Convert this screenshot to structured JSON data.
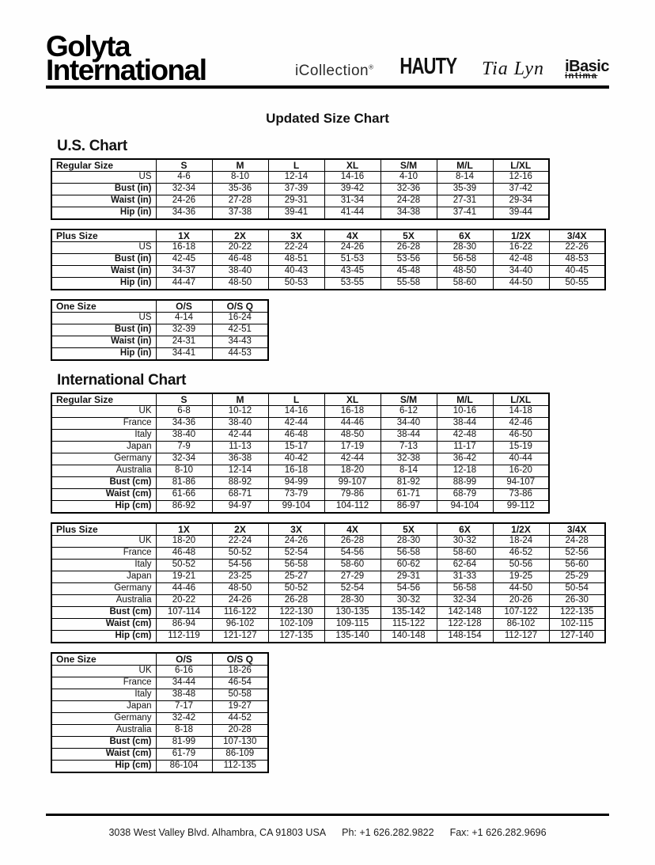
{
  "header": {
    "logo_line1": "Golyta",
    "logo_line2": "International",
    "brands": {
      "icollection": {
        "name": "iCollection",
        "mark": "®"
      },
      "hauty": {
        "name": "HAUTY"
      },
      "tialyn": {
        "name": "Tia Lyn"
      },
      "ibasic": {
        "name": "iBasic",
        "sub": "intima"
      }
    }
  },
  "title": "Updated Size Chart",
  "us": {
    "heading": "U.S. Chart"
  },
  "international": {
    "heading": "International Chart"
  },
  "tables": {
    "us_regular": {
      "corner": "Regular Size",
      "columns": [
        "S",
        "M",
        "L",
        "XL",
        "S/M",
        "M/L",
        "L/XL"
      ],
      "rows": [
        {
          "label": "US",
          "values": [
            "4-6",
            "8-10",
            "12-14",
            "14-16",
            "4-10",
            "8-14",
            "12-16"
          ]
        },
        {
          "label": "Bust (in)",
          "values": [
            "32-34",
            "35-36",
            "37-39",
            "39-42",
            "32-36",
            "35-39",
            "37-42"
          ]
        },
        {
          "label": "Waist (in)",
          "values": [
            "24-26",
            "27-28",
            "29-31",
            "31-34",
            "24-28",
            "27-31",
            "29-34"
          ]
        },
        {
          "label": "Hip (in)",
          "values": [
            "34-36",
            "37-38",
            "39-41",
            "41-44",
            "34-38",
            "37-41",
            "39-44"
          ]
        }
      ]
    },
    "us_plus": {
      "corner": "Plus Size",
      "columns": [
        "1X",
        "2X",
        "3X",
        "4X",
        "5X",
        "6X",
        "1/2X",
        "3/4X"
      ],
      "rows": [
        {
          "label": "US",
          "values": [
            "16-18",
            "20-22",
            "22-24",
            "24-26",
            "26-28",
            "28-30",
            "16-22",
            "22-26"
          ]
        },
        {
          "label": "Bust (in)",
          "values": [
            "42-45",
            "46-48",
            "48-51",
            "51-53",
            "53-56",
            "56-58",
            "42-48",
            "48-53"
          ]
        },
        {
          "label": "Waist (in)",
          "values": [
            "34-37",
            "38-40",
            "40-43",
            "43-45",
            "45-48",
            "48-50",
            "34-40",
            "40-45"
          ]
        },
        {
          "label": "Hip (in)",
          "values": [
            "44-47",
            "48-50",
            "50-53",
            "53-55",
            "55-58",
            "58-60",
            "44-50",
            "50-55"
          ]
        }
      ]
    },
    "us_onesize": {
      "corner": "One Size",
      "columns": [
        "O/S",
        "O/S Q"
      ],
      "rows": [
        {
          "label": "US",
          "values": [
            "4-14",
            "16-24"
          ]
        },
        {
          "label": "Bust (in)",
          "values": [
            "32-39",
            "42-51"
          ]
        },
        {
          "label": "Waist (in)",
          "values": [
            "24-31",
            "34-43"
          ]
        },
        {
          "label": "Hip (in)",
          "values": [
            "34-41",
            "44-53"
          ]
        }
      ]
    },
    "int_regular": {
      "corner": "Regular Size",
      "columns": [
        "S",
        "M",
        "L",
        "XL",
        "S/M",
        "M/L",
        "L/XL"
      ],
      "rows": [
        {
          "label": "UK",
          "values": [
            "6-8",
            "10-12",
            "14-16",
            "16-18",
            "6-12",
            "10-16",
            "14-18"
          ]
        },
        {
          "label": "France",
          "values": [
            "34-36",
            "38-40",
            "42-44",
            "44-46",
            "34-40",
            "38-44",
            "42-46"
          ]
        },
        {
          "label": "Italy",
          "values": [
            "38-40",
            "42-44",
            "46-48",
            "48-50",
            "38-44",
            "42-48",
            "46-50"
          ]
        },
        {
          "label": "Japan",
          "values": [
            "7-9",
            "11-13",
            "15-17",
            "17-19",
            "7-13",
            "11-17",
            "15-19"
          ]
        },
        {
          "label": "Germany",
          "values": [
            "32-34",
            "36-38",
            "40-42",
            "42-44",
            "32-38",
            "36-42",
            "40-44"
          ]
        },
        {
          "label": "Australia",
          "values": [
            "8-10",
            "12-14",
            "16-18",
            "18-20",
            "8-14",
            "12-18",
            "16-20"
          ]
        },
        {
          "label": "Bust (cm)",
          "values": [
            "81-86",
            "88-92",
            "94-99",
            "99-107",
            "81-92",
            "88-99",
            "94-107"
          ]
        },
        {
          "label": "Waist (cm)",
          "values": [
            "61-66",
            "68-71",
            "73-79",
            "79-86",
            "61-71",
            "68-79",
            "73-86"
          ]
        },
        {
          "label": "Hip (cm)",
          "values": [
            "86-92",
            "94-97",
            "99-104",
            "104-112",
            "86-97",
            "94-104",
            "99-112"
          ]
        }
      ]
    },
    "int_plus": {
      "corner": "Plus Size",
      "columns": [
        "1X",
        "2X",
        "3X",
        "4X",
        "5X",
        "6X",
        "1/2X",
        "3/4X"
      ],
      "rows": [
        {
          "label": "UK",
          "values": [
            "18-20",
            "22-24",
            "24-26",
            "26-28",
            "28-30",
            "30-32",
            "18-24",
            "24-28"
          ]
        },
        {
          "label": "France",
          "values": [
            "46-48",
            "50-52",
            "52-54",
            "54-56",
            "56-58",
            "58-60",
            "46-52",
            "52-56"
          ]
        },
        {
          "label": "Italy",
          "values": [
            "50-52",
            "54-56",
            "56-58",
            "58-60",
            "60-62",
            "62-64",
            "50-56",
            "56-60"
          ]
        },
        {
          "label": "Japan",
          "values": [
            "19-21",
            "23-25",
            "25-27",
            "27-29",
            "29-31",
            "31-33",
            "19-25",
            "25-29"
          ]
        },
        {
          "label": "Germany",
          "values": [
            "44-46",
            "48-50",
            "50-52",
            "52-54",
            "54-56",
            "56-58",
            "44-50",
            "50-54"
          ]
        },
        {
          "label": "Australia",
          "values": [
            "20-22",
            "24-26",
            "26-28",
            "28-30",
            "30-32",
            "32-34",
            "20-26",
            "26-30"
          ]
        },
        {
          "label": "Bust (cm)",
          "values": [
            "107-114",
            "116-122",
            "122-130",
            "130-135",
            "135-142",
            "142-148",
            "107-122",
            "122-135"
          ]
        },
        {
          "label": "Waist (cm)",
          "values": [
            "86-94",
            "96-102",
            "102-109",
            "109-115",
            "115-122",
            "122-128",
            "86-102",
            "102-115"
          ]
        },
        {
          "label": "Hip (cm)",
          "values": [
            "112-119",
            "121-127",
            "127-135",
            "135-140",
            "140-148",
            "148-154",
            "112-127",
            "127-140"
          ]
        }
      ]
    },
    "int_onesize": {
      "corner": "One Size",
      "columns": [
        "O/S",
        "O/S Q"
      ],
      "rows": [
        {
          "label": "UK",
          "values": [
            "6-16",
            "18-26"
          ]
        },
        {
          "label": "France",
          "values": [
            "34-44",
            "46-54"
          ]
        },
        {
          "label": "Italy",
          "values": [
            "38-48",
            "50-58"
          ]
        },
        {
          "label": "Japan",
          "values": [
            "7-17",
            "19-27"
          ]
        },
        {
          "label": "Germany",
          "values": [
            "32-42",
            "44-52"
          ]
        },
        {
          "label": "Australia",
          "values": [
            "8-18",
            "20-28"
          ]
        },
        {
          "label": "Bust (cm)",
          "values": [
            "81-99",
            "107-130"
          ]
        },
        {
          "label": "Waist (cm)",
          "values": [
            "61-79",
            "86-109"
          ]
        },
        {
          "label": "Hip (cm)",
          "values": [
            "86-104",
            "112-135"
          ]
        }
      ]
    }
  },
  "footer": {
    "address": "3038 West Valley Blvd. Alhambra, CA 91803 USA",
    "phone": "Ph: +1 626.282.9822",
    "fax": "Fax: +1 626.282.9696"
  },
  "colors": {
    "ink": "#000000",
    "paper": "#fefefe"
  }
}
